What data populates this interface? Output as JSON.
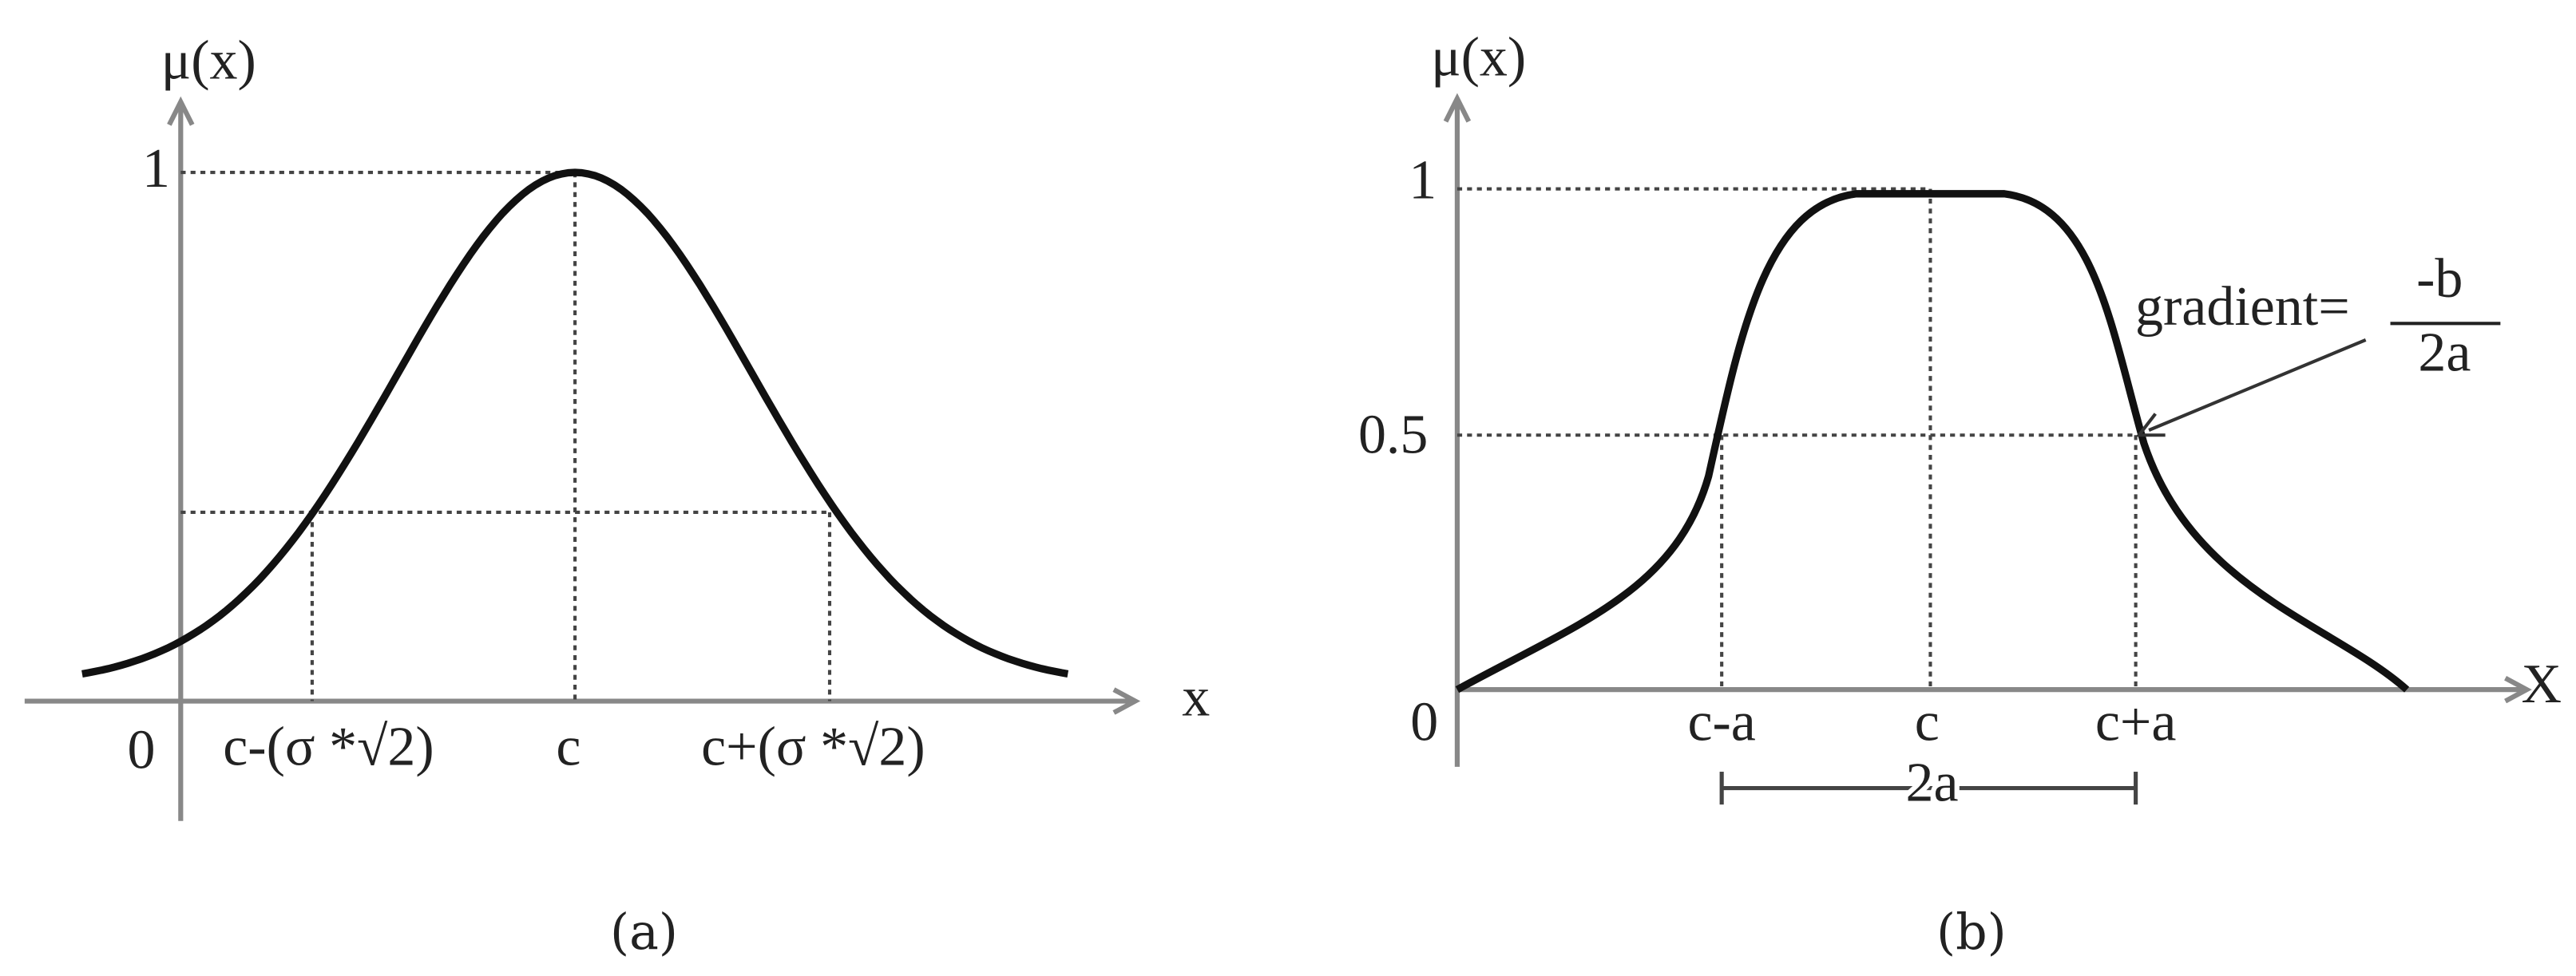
{
  "panels": [
    {
      "y_axis_label": "μ(x)",
      "x_axis_label": "x",
      "y_labels": [
        "1"
      ],
      "x_labels": [
        "0",
        "c-(σ *√2)",
        "c",
        "c+(σ *√2)"
      ],
      "caption": "(a)"
    },
    {
      "y_axis_label": "μ(x)",
      "x_axis_label": "X",
      "y_labels": [
        "1",
        "0.5"
      ],
      "x_labels": [
        "0",
        "c-a",
        "c",
        "c+a"
      ],
      "width_label": "2a",
      "annotation": {
        "text": "gradient=",
        "numerator": "-b",
        "denominator": "2a"
      },
      "caption": "(b)"
    }
  ]
}
